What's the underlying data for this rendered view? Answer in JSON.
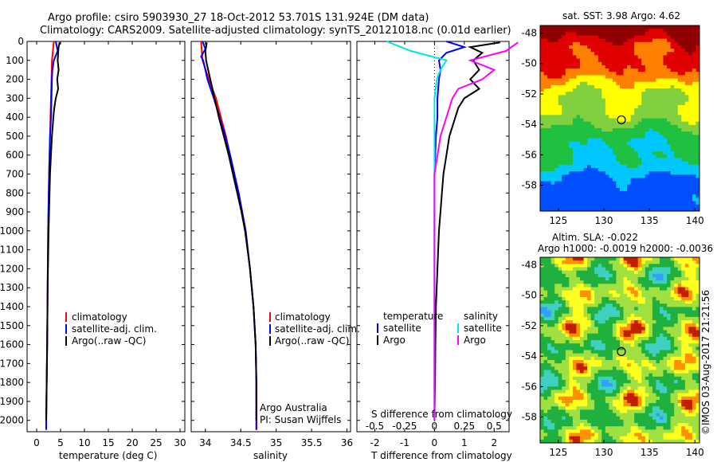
{
  "header": {
    "line1": "Argo profile: csiro 5903930_27 18-Oct-2012 53.701S 131.924E (DM data)",
    "line2": "Climatology: CARS2009. Satellite-adjusted climatology: synTS_20121018.nc (0.01d earlier)"
  },
  "colors": {
    "climatology": "#ff0000",
    "satellite": "#0000ff",
    "argo": "#000000",
    "sal_satellite": "#00e5e5",
    "sal_argo": "#ff00ff"
  },
  "chart_data": [
    {
      "id": "temperature",
      "type": "line",
      "xlabel": "temperature (deg C)",
      "ylabel": "",
      "xlim": [
        -2,
        31
      ],
      "ylim": [
        2060,
        0
      ],
      "xticks": [
        "0",
        "5",
        "10",
        "15",
        "20",
        "25",
        "30"
      ],
      "yticks": [
        "0",
        "100",
        "200",
        "300",
        "400",
        "500",
        "600",
        "700",
        "800",
        "900",
        "1000",
        "1100",
        "1200",
        "1300",
        "1400",
        "1500",
        "1600",
        "1700",
        "1800",
        "1900",
        "2000"
      ],
      "legend": [
        "climatology",
        "satellite-adj. clim.",
        "Argo(..raw -QC)"
      ],
      "series": [
        {
          "name": "climatology",
          "depth": [
            0,
            50,
            100,
            200,
            300,
            400,
            500,
            700,
            1000,
            1300,
            1600,
            1800,
            2000,
            2050
          ],
          "values": [
            3.6,
            3.4,
            3.2,
            3.1,
            3.0,
            2.9,
            2.8,
            2.6,
            2.4,
            2.3,
            2.2,
            2.1,
            2.0,
            2.0
          ]
        },
        {
          "name": "satellite-adj. clim.",
          "depth": [
            0,
            50,
            100,
            150,
            200,
            300,
            400,
            500,
            700,
            1000,
            1300,
            1600,
            1800,
            2000,
            2050
          ],
          "values": [
            4.0,
            4.4,
            3.6,
            3.3,
            3.2,
            3.1,
            3.0,
            2.8,
            2.6,
            2.4,
            2.3,
            2.2,
            2.1,
            2.0,
            2.0
          ]
        },
        {
          "name": "Argo(..raw -QC)",
          "depth": [
            5,
            30,
            60,
            100,
            150,
            200,
            250,
            300,
            350,
            400,
            500,
            700,
            1000,
            1300,
            1600,
            1800,
            2000
          ],
          "values": [
            4.8,
            4.6,
            4.5,
            4.4,
            4.6,
            4.3,
            4.5,
            4.0,
            3.7,
            3.5,
            3.2,
            2.8,
            2.5,
            2.3,
            2.2,
            2.1,
            2.0
          ]
        }
      ]
    },
    {
      "id": "salinity",
      "type": "line",
      "xlabel": "salinity",
      "ylabel": "",
      "xlim": [
        33.8,
        36.05
      ],
      "ylim": [
        2060,
        0
      ],
      "xticks": [
        "34",
        "34.5",
        "35",
        "35.5",
        "36"
      ],
      "legend": [
        "climatology",
        "satellite-adj. clim.",
        "Argo(..raw -QC)"
      ],
      "series": [
        {
          "name": "climatology",
          "depth": [
            0,
            100,
            200,
            300,
            400,
            500,
            600,
            700,
            800,
            900,
            1000,
            1200,
            1400,
            1600,
            1800,
            2000,
            2050
          ],
          "values": [
            33.94,
            33.96,
            34.05,
            34.15,
            34.22,
            34.29,
            34.35,
            34.41,
            34.47,
            34.52,
            34.57,
            34.63,
            34.68,
            34.71,
            34.72,
            34.72,
            34.72
          ]
        },
        {
          "name": "satellite-adj. clim.",
          "depth": [
            0,
            40,
            80,
            100,
            200,
            300,
            400,
            500,
            600,
            700,
            800,
            900,
            1000,
            1200,
            1400,
            1600,
            1800,
            2000,
            2050
          ],
          "values": [
            33.96,
            34.0,
            33.94,
            33.97,
            34.03,
            34.12,
            34.2,
            34.28,
            34.35,
            34.41,
            34.47,
            34.52,
            34.57,
            34.63,
            34.68,
            34.71,
            34.72,
            34.72,
            34.72
          ]
        },
        {
          "name": "Argo(..raw -QC)",
          "depth": [
            5,
            50,
            100,
            150,
            200,
            250,
            300,
            400,
            500,
            600,
            700,
            800,
            900,
            1000,
            1200,
            1400,
            1600,
            1800,
            2000
          ],
          "values": [
            34.02,
            34.0,
            34.01,
            34.04,
            34.07,
            34.1,
            34.13,
            34.19,
            34.26,
            34.33,
            34.39,
            34.45,
            34.51,
            34.56,
            34.63,
            34.68,
            34.71,
            34.72,
            34.72
          ]
        }
      ],
      "annotations": [
        "Argo Australia",
        "PI: Susan Wijffels"
      ]
    },
    {
      "id": "difference",
      "type": "line",
      "xlabel": "T difference from climatology",
      "xlabel_top": "S difference from climatology",
      "xlim": [
        -2.6,
        2.5
      ],
      "ylim": [
        2060,
        0
      ],
      "xticks": [
        "-2",
        "-1",
        "0",
        "1",
        "2"
      ],
      "xticks_s": [
        "-0.5",
        "-0.25",
        "0",
        "0.25",
        "0.5"
      ],
      "legend_temperature_title": "temperature",
      "legend_salinity_title": "salinity",
      "legend_temperature": [
        "satellite",
        "Argo"
      ],
      "legend_salinity": [
        "satellite",
        "Argo"
      ],
      "series": [
        {
          "name": "temperature satellite",
          "depth": [
            0,
            30,
            60,
            100,
            150,
            200,
            300,
            400,
            500,
            700,
            1000,
            1400,
            2000
          ],
          "values": [
            0.4,
            1.0,
            0.4,
            0.15,
            0.2,
            0.15,
            0.1,
            0.1,
            0.05,
            0.0,
            0.0,
            0.0,
            0.0
          ]
        },
        {
          "name": "temperature Argo",
          "depth": [
            5,
            30,
            60,
            100,
            150,
            200,
            250,
            300,
            350,
            400,
            500,
            600,
            700,
            800,
            900,
            1000,
            1200,
            1400,
            1600,
            1800,
            2000
          ],
          "values": [
            2.2,
            1.2,
            1.6,
            1.3,
            1.5,
            1.2,
            1.5,
            1.0,
            0.8,
            0.7,
            0.5,
            0.4,
            0.3,
            0.25,
            0.2,
            0.15,
            0.1,
            0.05,
            0.03,
            0.02,
            0.0
          ]
        },
        {
          "name": "salinity satellite",
          "depth": [
            0,
            50,
            100,
            150,
            200,
            300,
            400,
            600,
            1000,
            1400,
            2000
          ],
          "values": [
            -0.4,
            -0.2,
            0.1,
            0.05,
            0.02,
            0.0,
            0.0,
            0.0,
            0.0,
            0.0,
            0.0
          ]
        },
        {
          "name": "salinity Argo",
          "depth": [
            5,
            50,
            100,
            150,
            200,
            250,
            300,
            400,
            500,
            700,
            1000,
            1400,
            2000
          ],
          "values": [
            0.7,
            0.6,
            0.3,
            0.5,
            0.4,
            0.2,
            0.15,
            0.1,
            0.05,
            0.0,
            0.0,
            0.0,
            0.0
          ]
        }
      ]
    },
    {
      "id": "sst_map",
      "type": "heatmap",
      "title": "sat. SST: 3.98 Argo: 4.62",
      "xlim": [
        123,
        140.5
      ],
      "ylim": [
        -59.7,
        -47.5
      ],
      "xticks": [
        "125",
        "130",
        "135",
        "140"
      ],
      "yticks": [
        "-48",
        "-50",
        "-52",
        "-54",
        "-56",
        "-58"
      ],
      "marker": {
        "lon": 131.924,
        "lat": -53.701
      }
    },
    {
      "id": "sla_map",
      "type": "heatmap",
      "title": "Altim. SLA: -0.022",
      "subtitle": "Argo h1000: -0.0019 h2000: -0.0036",
      "xlim": [
        123,
        140.5
      ],
      "ylim": [
        -59.7,
        -47.5
      ],
      "xticks": [
        "125",
        "130",
        "135",
        "140"
      ],
      "yticks": [
        "-48",
        "-50",
        "-52",
        "-54",
        "-56",
        "-58"
      ],
      "marker": {
        "lon": 131.924,
        "lat": -53.701
      }
    }
  ],
  "footer": {
    "stamp": "©IMOS 03-Aug-2017 21:21:56"
  }
}
